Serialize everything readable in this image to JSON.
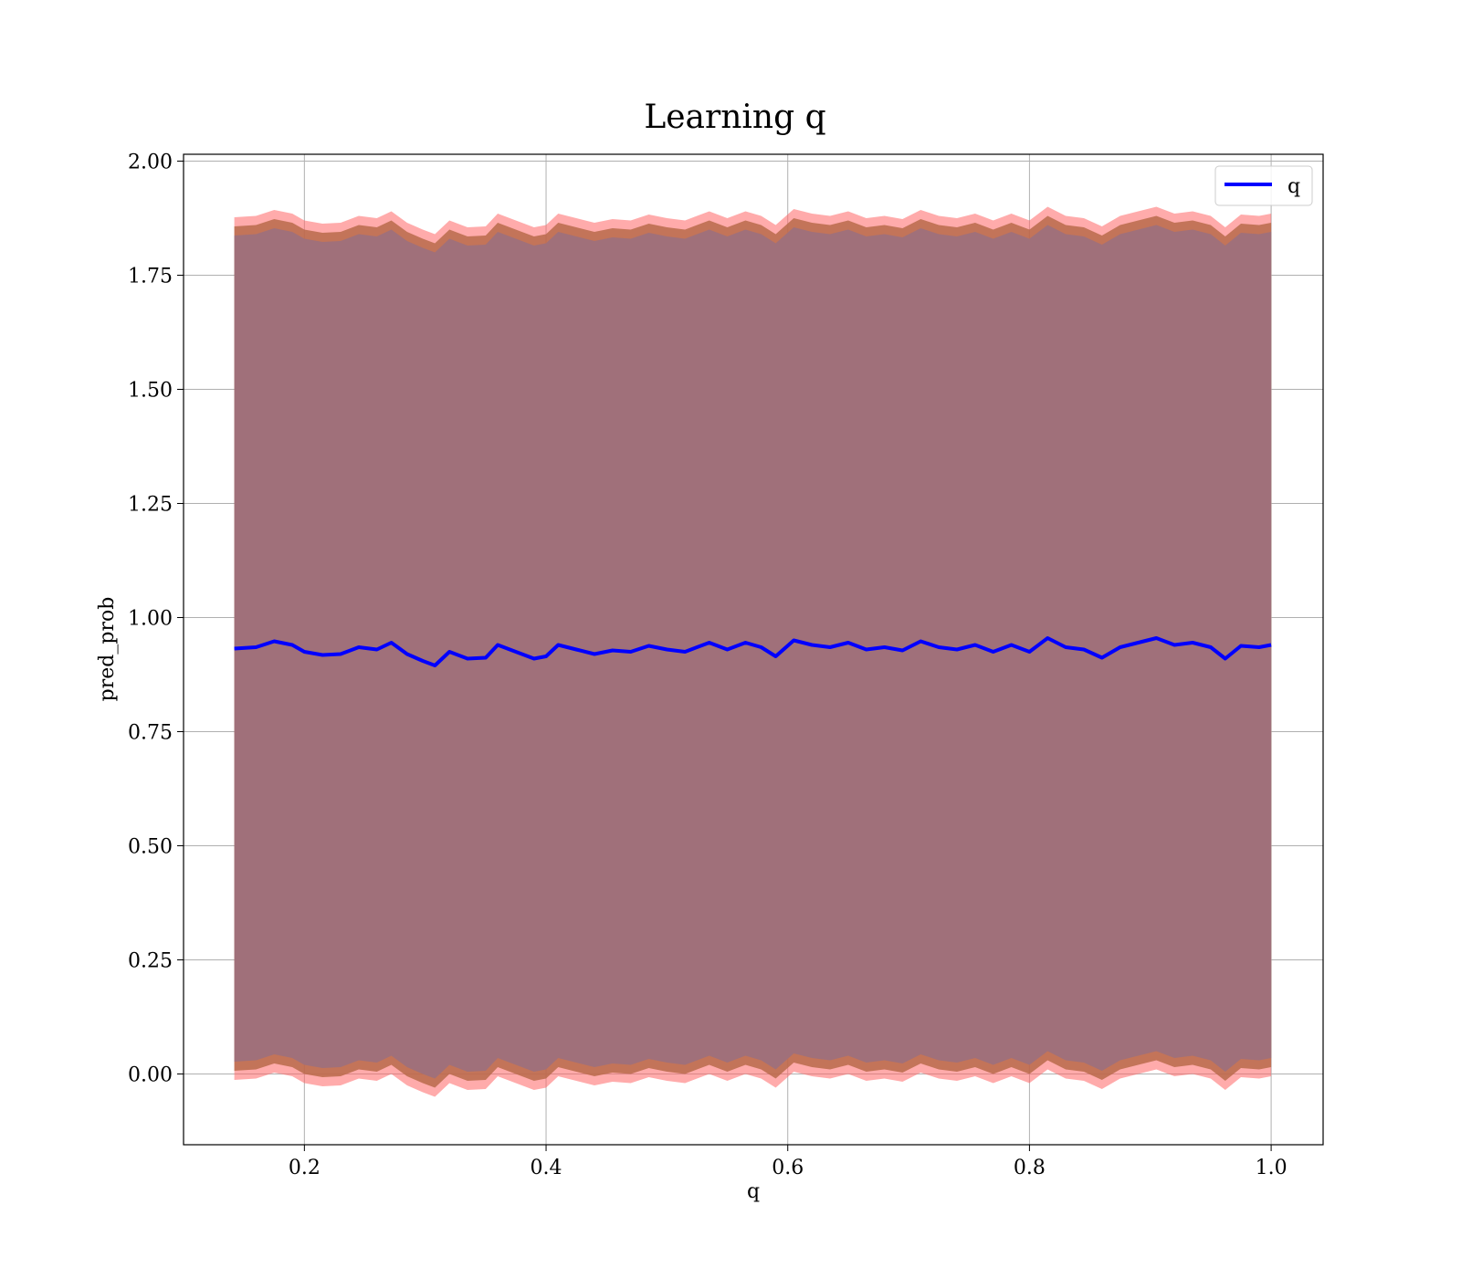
{
  "chart_data": {
    "type": "line",
    "title": "Learning q",
    "xlabel": "q",
    "ylabel": "pred_prob",
    "xlim": [
      0.1,
      1.043
    ],
    "ylim": [
      -0.155,
      2.015
    ],
    "xticks": [
      0.2,
      0.4,
      0.6,
      0.8,
      1.0
    ],
    "xtick_labels": [
      "0.2",
      "0.4",
      "0.6",
      "0.8",
      "1.0"
    ],
    "yticks": [
      0.0,
      0.25,
      0.5,
      0.75,
      1.0,
      1.25,
      1.5,
      1.75,
      2.0
    ],
    "ytick_labels": [
      "0.00",
      "0.25",
      "0.50",
      "0.75",
      "1.00",
      "1.25",
      "1.50",
      "1.75",
      "2.00"
    ],
    "grid": true,
    "legend": {
      "position": "top-right",
      "entries": [
        "q"
      ]
    },
    "colors": {
      "line": "#0000ff",
      "band_outer": "#ff6666",
      "band_mid": "#b86a4a",
      "band_inner": "#a0707a"
    },
    "series": [
      {
        "name": "q",
        "x": [
          0.142,
          0.16,
          0.175,
          0.19,
          0.2,
          0.215,
          0.23,
          0.245,
          0.26,
          0.272,
          0.285,
          0.298,
          0.308,
          0.32,
          0.335,
          0.35,
          0.36,
          0.375,
          0.39,
          0.4,
          0.41,
          0.425,
          0.44,
          0.455,
          0.47,
          0.485,
          0.5,
          0.515,
          0.535,
          0.55,
          0.565,
          0.578,
          0.59,
          0.605,
          0.62,
          0.635,
          0.65,
          0.665,
          0.68,
          0.695,
          0.71,
          0.725,
          0.74,
          0.755,
          0.77,
          0.785,
          0.8,
          0.815,
          0.83,
          0.845,
          0.86,
          0.875,
          0.89,
          0.905,
          0.92,
          0.935,
          0.95,
          0.962,
          0.975,
          0.99,
          1.0
        ],
        "y": [
          0.932,
          0.935,
          0.948,
          0.94,
          0.925,
          0.918,
          0.92,
          0.935,
          0.93,
          0.945,
          0.92,
          0.905,
          0.895,
          0.925,
          0.91,
          0.912,
          0.94,
          0.925,
          0.91,
          0.915,
          0.94,
          0.93,
          0.92,
          0.928,
          0.925,
          0.938,
          0.93,
          0.925,
          0.945,
          0.93,
          0.945,
          0.935,
          0.915,
          0.95,
          0.94,
          0.935,
          0.945,
          0.93,
          0.935,
          0.928,
          0.948,
          0.935,
          0.93,
          0.94,
          0.925,
          0.94,
          0.925,
          0.955,
          0.935,
          0.93,
          0.912,
          0.935,
          0.945,
          0.955,
          0.94,
          0.945,
          0.935,
          0.91,
          0.938,
          0.935,
          0.94
        ]
      }
    ],
    "band_halfwidths": [
      0.905,
      0.925,
      0.945
    ]
  }
}
